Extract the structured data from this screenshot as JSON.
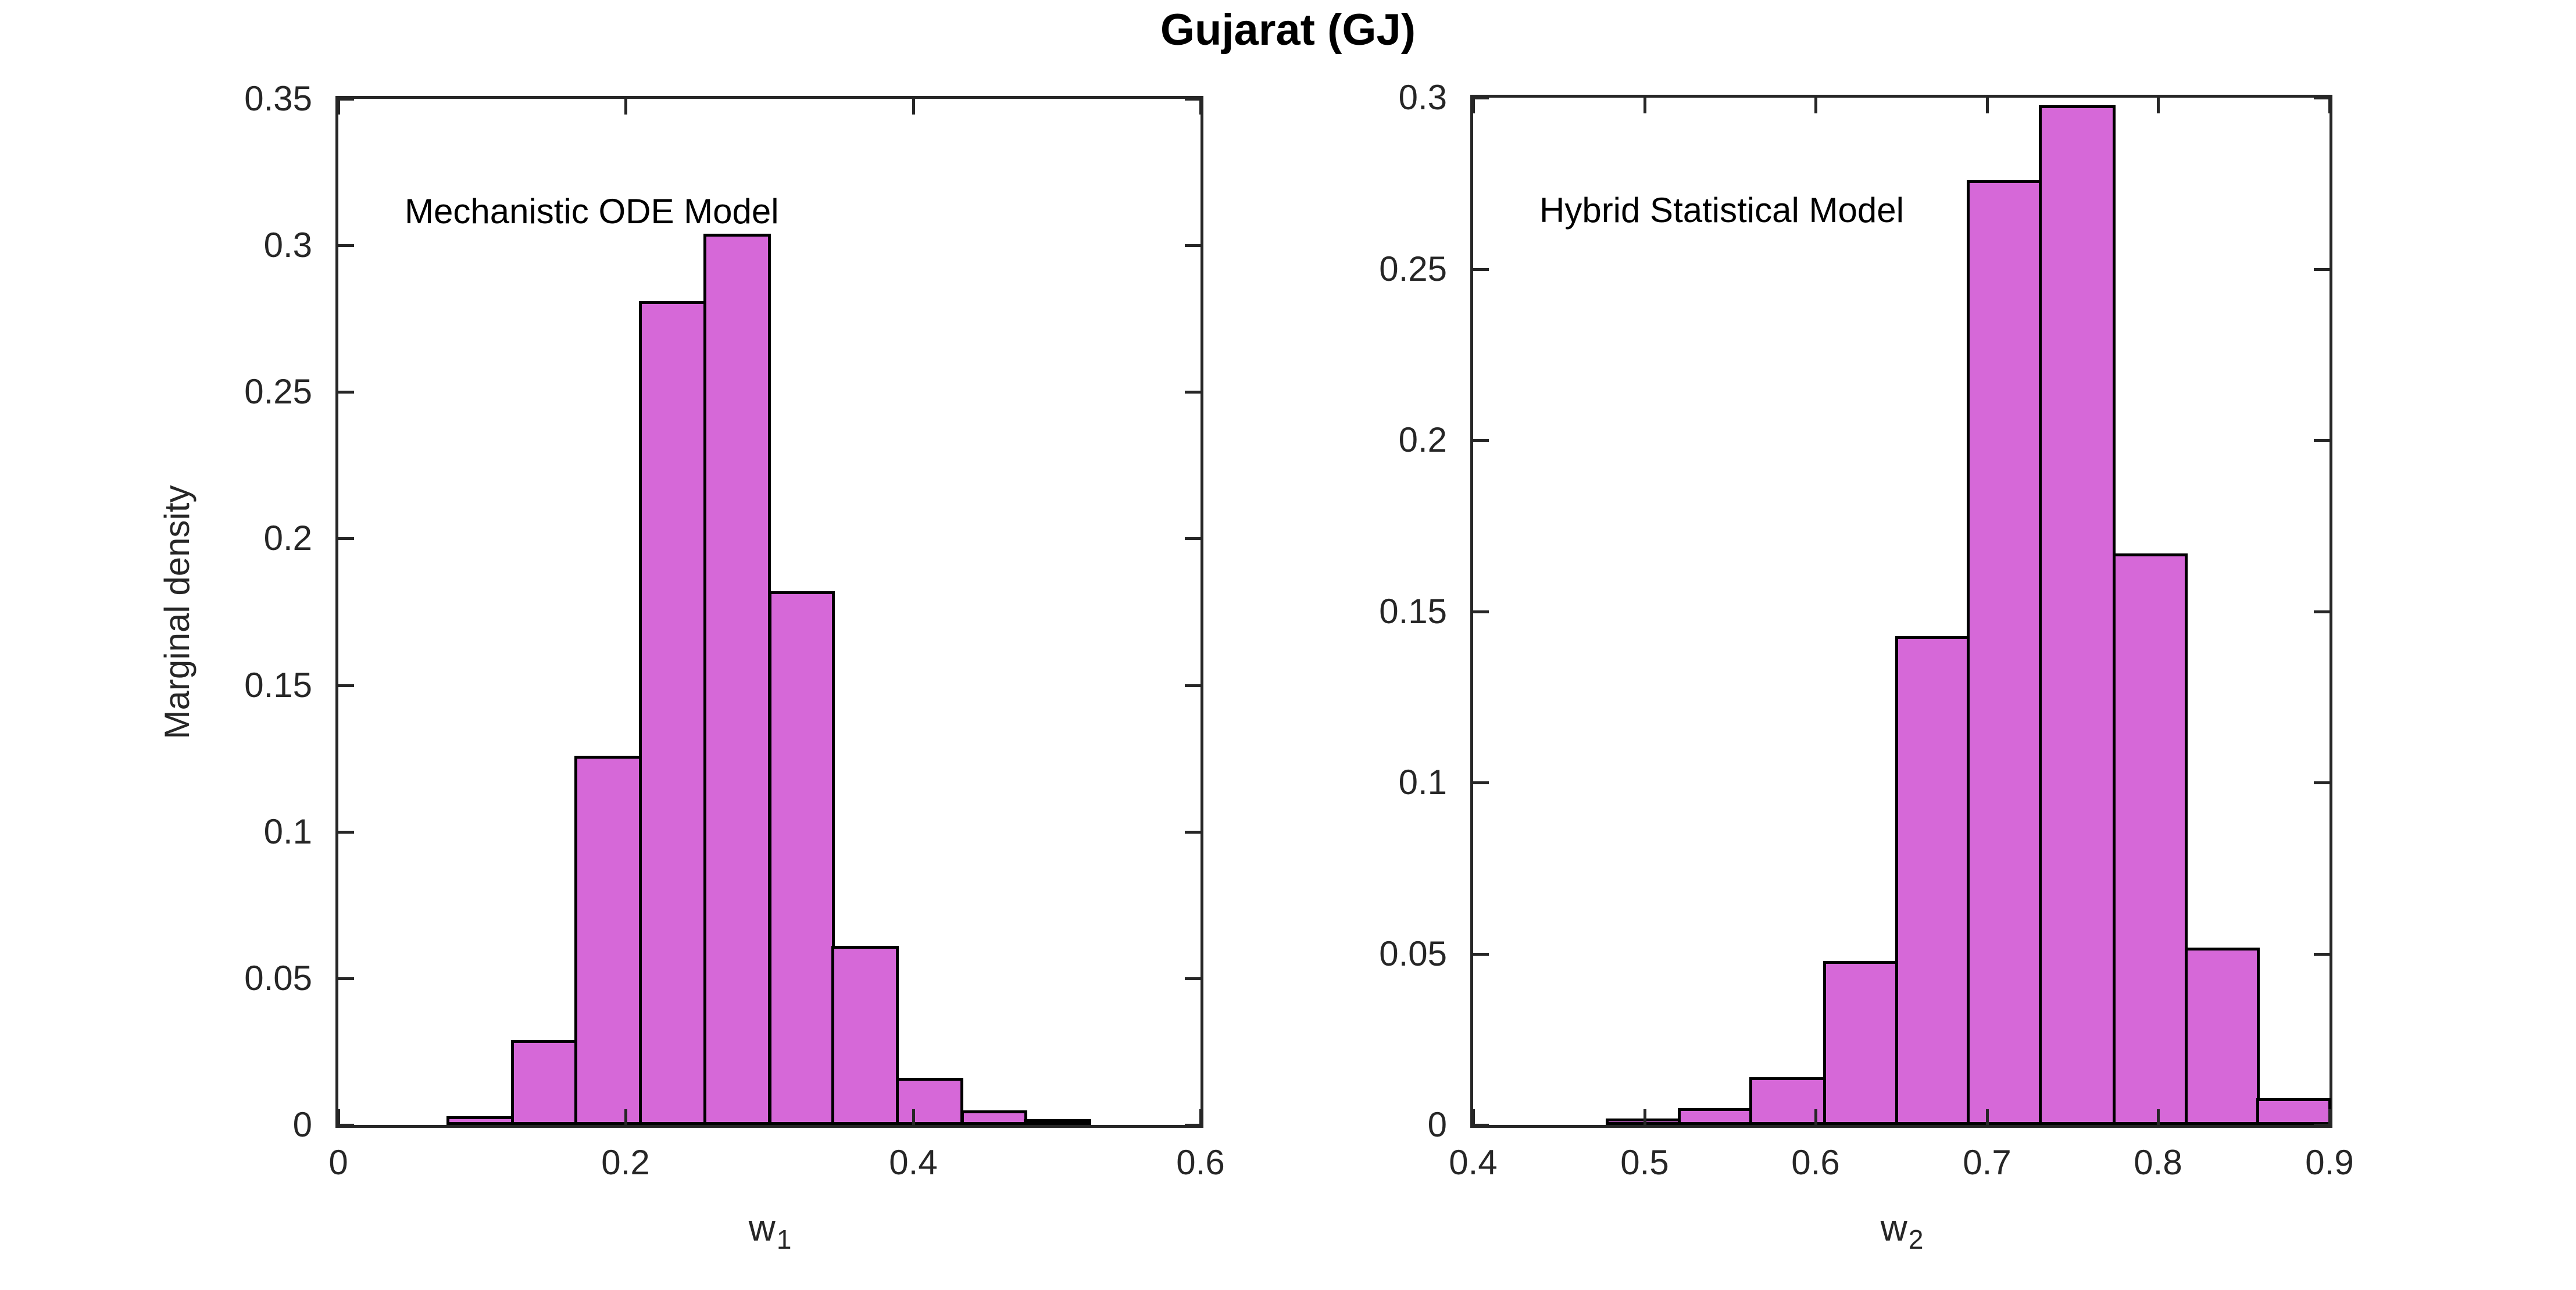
{
  "title": "Gujarat (GJ)",
  "colors": {
    "bar_fill": "#d668d8",
    "bar_edge": "#000000",
    "axis": "#262626",
    "text": "#262626",
    "title_text": "#000000"
  },
  "chart_data": [
    {
      "type": "bar",
      "subtype": "histogram",
      "panel_label": "Mechanistic ODE Model",
      "xlabel_base": "w",
      "xlabel_sub": "1",
      "ylabel": "Marginal density",
      "xlim": [
        0,
        0.6
      ],
      "ylim": [
        0,
        0.35
      ],
      "xticks": [
        0,
        0.2,
        0.4,
        0.6
      ],
      "xtick_labels": [
        "0",
        "0.2",
        "0.4",
        "0.6"
      ],
      "yticks": [
        0,
        0.05,
        0.1,
        0.15,
        0.2,
        0.25,
        0.3,
        0.35
      ],
      "ytick_labels": [
        "0",
        "0.05",
        "0.1",
        "0.15",
        "0.2",
        "0.25",
        "0.3",
        "0.35"
      ],
      "grid": false,
      "bin_edges": [
        0.076,
        0.121,
        0.165,
        0.21,
        0.255,
        0.3,
        0.344,
        0.389,
        0.434,
        0.478,
        0.523
      ],
      "values": [
        0.002,
        0.028,
        0.125,
        0.28,
        0.303,
        0.181,
        0.06,
        0.015,
        0.004,
        0.001
      ]
    },
    {
      "type": "bar",
      "subtype": "histogram",
      "panel_label": "Hybrid Statistical Model",
      "xlabel_base": "w",
      "xlabel_sub": "2",
      "ylabel": "",
      "xlim": [
        0.4,
        0.9
      ],
      "ylim": [
        0,
        0.3
      ],
      "xticks": [
        0.4,
        0.5,
        0.6,
        0.7,
        0.8,
        0.9
      ],
      "xtick_labels": [
        "0.4",
        "0.5",
        "0.6",
        "0.7",
        "0.8",
        "0.9"
      ],
      "yticks": [
        0,
        0.05,
        0.1,
        0.15,
        0.2,
        0.25,
        0.3
      ],
      "ytick_labels": [
        "0",
        "0.05",
        "0.1",
        "0.15",
        "0.2",
        "0.25",
        "0.3"
      ],
      "grid": false,
      "bin_edges": [
        0.478,
        0.52,
        0.562,
        0.605,
        0.647,
        0.689,
        0.731,
        0.774,
        0.816,
        0.858,
        0.9
      ],
      "values": [
        0.001,
        0.004,
        0.013,
        0.047,
        0.142,
        0.275,
        0.297,
        0.166,
        0.051,
        0.007
      ]
    }
  ]
}
